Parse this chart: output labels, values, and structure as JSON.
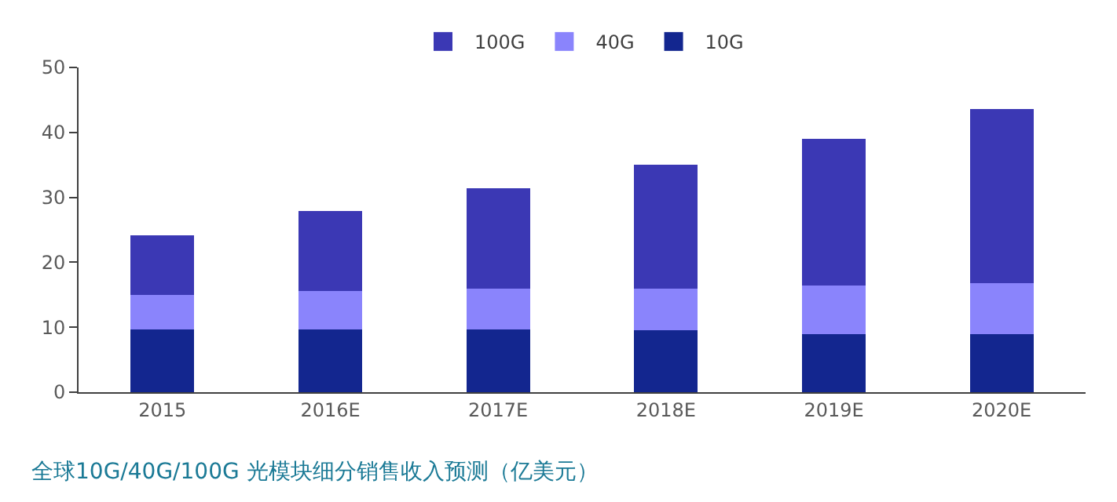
{
  "chart_data": {
    "type": "bar",
    "stacked": true,
    "title": "全球10G/40G/100G 光模块细分销售收入预测（亿美元）",
    "categories": [
      "2015",
      "2016E",
      "2017E",
      "2018E",
      "2019E",
      "2020E"
    ],
    "series": [
      {
        "name": "10G",
        "color": "#13268f",
        "values": [
          9.7,
          9.7,
          9.7,
          9.6,
          8.9,
          8.9
        ]
      },
      {
        "name": "40G",
        "color": "#8a84fc",
        "values": [
          5.3,
          5.9,
          6.2,
          6.3,
          7.5,
          7.9
        ]
      },
      {
        "name": "100G",
        "color": "#3b38b4",
        "values": [
          9.2,
          12.3,
          15.5,
          19.1,
          22.6,
          26.8
        ]
      }
    ],
    "ylim": [
      0,
      50
    ],
    "yticks": [
      0,
      10,
      20,
      30,
      40,
      50
    ],
    "legend": "top"
  }
}
